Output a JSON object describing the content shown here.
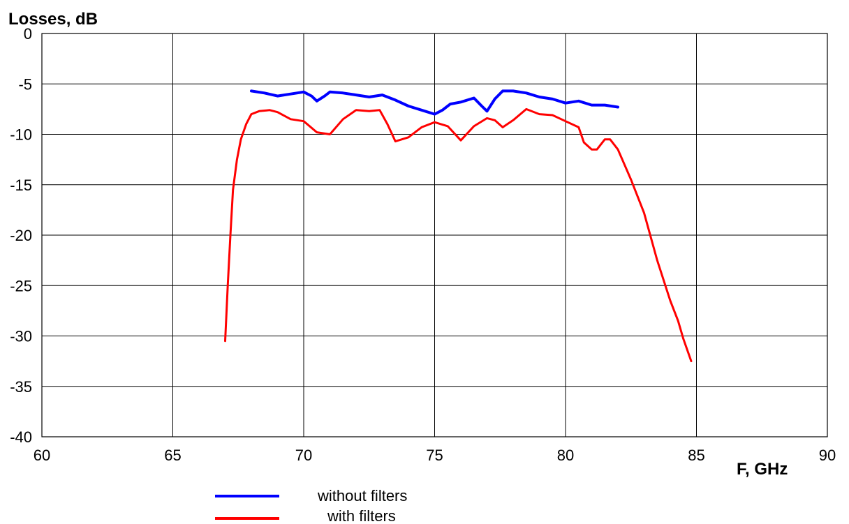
{
  "chart_data": {
    "type": "line",
    "title": "",
    "xlabel": "F, GHz",
    "ylabel": "Losses, dB",
    "xlim": [
      60,
      90
    ],
    "ylim": [
      -40,
      0
    ],
    "xticks": [
      60,
      65,
      70,
      75,
      80,
      85,
      90
    ],
    "yticks": [
      0,
      -5,
      -10,
      -15,
      -20,
      -25,
      -30,
      -35,
      -40
    ],
    "grid": true,
    "legend_position": "bottom-left",
    "series": [
      {
        "name": "without filters",
        "color": "#0000ff",
        "points": [
          [
            68.0,
            -5.7
          ],
          [
            68.5,
            -5.9
          ],
          [
            69.0,
            -6.2
          ],
          [
            69.5,
            -6.0
          ],
          [
            70.0,
            -5.8
          ],
          [
            70.3,
            -6.2
          ],
          [
            70.5,
            -6.7
          ],
          [
            70.8,
            -6.2
          ],
          [
            71.0,
            -5.8
          ],
          [
            71.5,
            -5.9
          ],
          [
            72.0,
            -6.1
          ],
          [
            72.5,
            -6.3
          ],
          [
            73.0,
            -6.1
          ],
          [
            73.5,
            -6.6
          ],
          [
            74.0,
            -7.2
          ],
          [
            74.5,
            -7.6
          ],
          [
            75.0,
            -8.0
          ],
          [
            75.3,
            -7.6
          ],
          [
            75.6,
            -7.0
          ],
          [
            76.0,
            -6.8
          ],
          [
            76.5,
            -6.4
          ],
          [
            76.8,
            -7.2
          ],
          [
            77.0,
            -7.7
          ],
          [
            77.3,
            -6.5
          ],
          [
            77.6,
            -5.7
          ],
          [
            78.0,
            -5.7
          ],
          [
            78.5,
            -5.9
          ],
          [
            79.0,
            -6.3
          ],
          [
            79.5,
            -6.5
          ],
          [
            80.0,
            -6.9
          ],
          [
            80.5,
            -6.7
          ],
          [
            81.0,
            -7.1
          ],
          [
            81.5,
            -7.1
          ],
          [
            82.0,
            -7.3
          ]
        ]
      },
      {
        "name": "with filters",
        "color": "#ff0000",
        "points": [
          [
            67.0,
            -30.5
          ],
          [
            67.1,
            -25.0
          ],
          [
            67.2,
            -20.0
          ],
          [
            67.3,
            -15.5
          ],
          [
            67.45,
            -12.5
          ],
          [
            67.6,
            -10.5
          ],
          [
            67.8,
            -9.0
          ],
          [
            68.0,
            -8.0
          ],
          [
            68.3,
            -7.7
          ],
          [
            68.7,
            -7.6
          ],
          [
            69.0,
            -7.8
          ],
          [
            69.5,
            -8.5
          ],
          [
            70.0,
            -8.7
          ],
          [
            70.5,
            -9.8
          ],
          [
            71.0,
            -10.0
          ],
          [
            71.5,
            -8.5
          ],
          [
            72.0,
            -7.6
          ],
          [
            72.5,
            -7.7
          ],
          [
            72.9,
            -7.6
          ],
          [
            73.2,
            -9.0
          ],
          [
            73.5,
            -10.7
          ],
          [
            74.0,
            -10.3
          ],
          [
            74.5,
            -9.3
          ],
          [
            75.0,
            -8.8
          ],
          [
            75.5,
            -9.2
          ],
          [
            76.0,
            -10.6
          ],
          [
            76.5,
            -9.2
          ],
          [
            77.0,
            -8.4
          ],
          [
            77.3,
            -8.6
          ],
          [
            77.6,
            -9.3
          ],
          [
            78.0,
            -8.6
          ],
          [
            78.5,
            -7.5
          ],
          [
            79.0,
            -8.0
          ],
          [
            79.5,
            -8.1
          ],
          [
            80.0,
            -8.7
          ],
          [
            80.5,
            -9.3
          ],
          [
            80.7,
            -10.8
          ],
          [
            81.0,
            -11.5
          ],
          [
            81.2,
            -11.5
          ],
          [
            81.5,
            -10.5
          ],
          [
            81.7,
            -10.5
          ],
          [
            82.0,
            -11.5
          ],
          [
            82.5,
            -14.5
          ],
          [
            83.0,
            -17.8
          ],
          [
            83.5,
            -22.5
          ],
          [
            84.0,
            -26.5
          ],
          [
            84.3,
            -28.5
          ],
          [
            84.5,
            -30.3
          ],
          [
            84.8,
            -32.5
          ]
        ]
      }
    ]
  }
}
